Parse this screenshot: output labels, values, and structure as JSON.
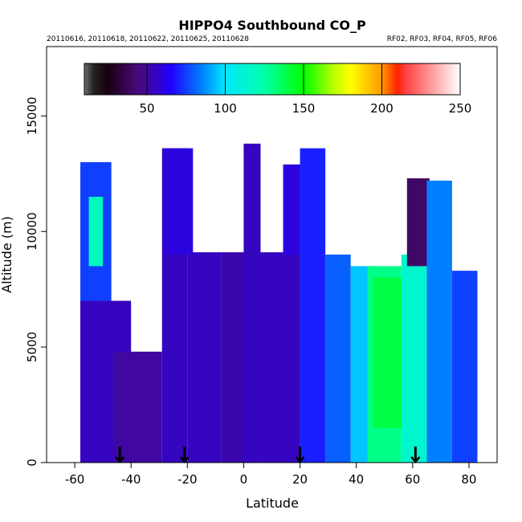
{
  "chart_data": {
    "type": "heatmap",
    "title": "HIPPO4 Southbound CO_P",
    "subtitle_left": "20110616, 20110618, 20110622, 20110625, 20110628",
    "subtitle_right": "RF02, RF03, RF04, RF05, RF06",
    "xlabel": "Latitude",
    "ylabel": "Altitude (m)",
    "xlim": [
      -70,
      90
    ],
    "ylim": [
      0,
      18000
    ],
    "xticks": [
      -60,
      -40,
      -20,
      0,
      20,
      40,
      60,
      80
    ],
    "yticks": [
      0,
      5000,
      10000,
      15000
    ],
    "colorbar": {
      "range": [
        10,
        250
      ],
      "ticks": [
        50,
        100,
        150,
        200,
        250
      ],
      "stops": [
        {
          "value": 10,
          "color": "#6e6e6e"
        },
        {
          "value": 16,
          "color": "#222222"
        },
        {
          "value": 25,
          "color": "#1a0010"
        },
        {
          "value": 45,
          "color": "#4a0a80"
        },
        {
          "value": 65,
          "color": "#2000ff"
        },
        {
          "value": 85,
          "color": "#0080ff"
        },
        {
          "value": 100,
          "color": "#00e8ff"
        },
        {
          "value": 125,
          "color": "#00ffaa"
        },
        {
          "value": 150,
          "color": "#00ff00"
        },
        {
          "value": 170,
          "color": "#c0ff00"
        },
        {
          "value": 180,
          "color": "#ffff00"
        },
        {
          "value": 200,
          "color": "#ff9900"
        },
        {
          "value": 210,
          "color": "#ff2200"
        },
        {
          "value": 215,
          "color": "#ff4040"
        },
        {
          "value": 250,
          "color": "#ffffff"
        }
      ]
    },
    "arrows_latitude": [
      -44,
      -21,
      20,
      61
    ],
    "data_regions": [
      {
        "lat": [
          -58,
          -53
        ],
        "alt": [
          0,
          12800
        ],
        "value": 70
      },
      {
        "lat": [
          -58,
          -47
        ],
        "alt": [
          7000,
          13000
        ],
        "value": 75
      },
      {
        "lat": [
          -55,
          -50
        ],
        "alt": [
          8500,
          11500
        ],
        "value": 120
      },
      {
        "lat": [
          -58,
          -40
        ],
        "alt": [
          0,
          7000
        ],
        "value": 55
      },
      {
        "lat": [
          -46,
          -29
        ],
        "alt": [
          0,
          4800
        ],
        "value": 50
      },
      {
        "lat": [
          -29,
          -20
        ],
        "alt": [
          0,
          13600
        ],
        "value": 55
      },
      {
        "lat": [
          -20,
          -8
        ],
        "alt": [
          0,
          9100
        ],
        "value": 55
      },
      {
        "lat": [
          -28,
          -18
        ],
        "alt": [
          9000,
          13600
        ],
        "value": 60
      },
      {
        "lat": [
          -8,
          1
        ],
        "alt": [
          0,
          9100
        ],
        "value": 52
      },
      {
        "lat": [
          0,
          6
        ],
        "alt": [
          0,
          13800
        ],
        "value": 55
      },
      {
        "lat": [
          6,
          20
        ],
        "alt": [
          0,
          9100
        ],
        "value": 55
      },
      {
        "lat": [
          14,
          20
        ],
        "alt": [
          9000,
          12900
        ],
        "value": 60
      },
      {
        "lat": [
          20,
          29
        ],
        "alt": [
          0,
          13600
        ],
        "value": 70
      },
      {
        "lat": [
          29,
          38
        ],
        "alt": [
          0,
          9000
        ],
        "value": 80
      },
      {
        "lat": [
          38,
          46
        ],
        "alt": [
          0,
          8500
        ],
        "value": 95
      },
      {
        "lat": [
          44,
          56
        ],
        "alt": [
          0,
          8500
        ],
        "value": 130
      },
      {
        "lat": [
          46,
          58
        ],
        "alt": [
          1500,
          8000
        ],
        "value": 140
      },
      {
        "lat": [
          56,
          65
        ],
        "alt": [
          0,
          9000
        ],
        "value": 115
      },
      {
        "lat": [
          58,
          66
        ],
        "alt": [
          8500,
          12300
        ],
        "value": 40
      },
      {
        "lat": [
          65,
          74
        ],
        "alt": [
          0,
          12200
        ],
        "value": 85
      },
      {
        "lat": [
          74,
          83
        ],
        "alt": [
          0,
          8300
        ],
        "value": 75
      }
    ]
  }
}
